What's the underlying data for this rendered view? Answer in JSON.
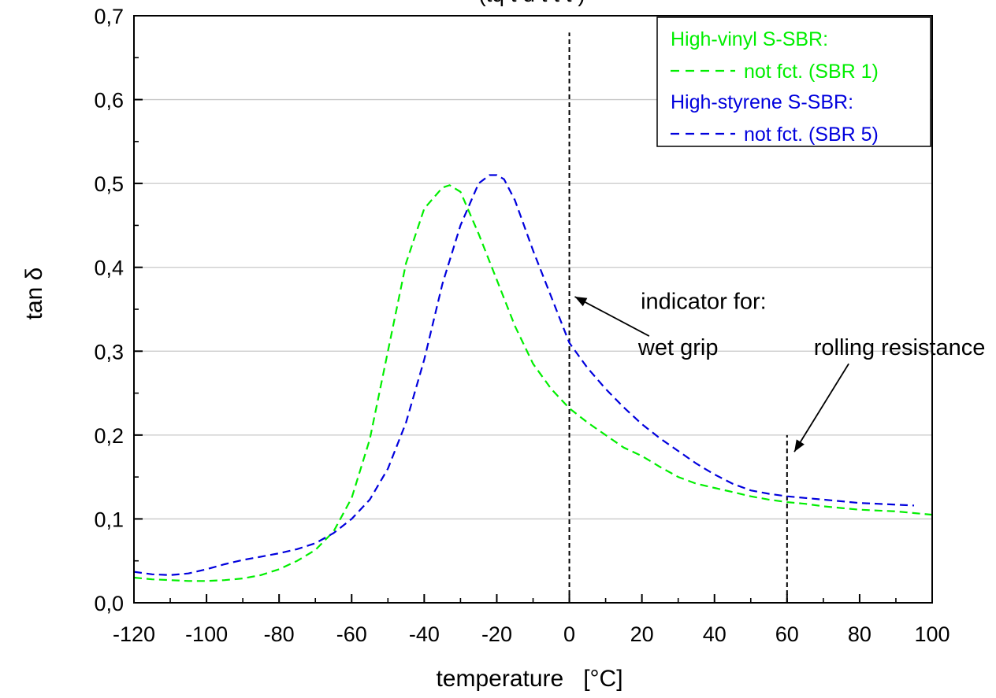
{
  "chart_data": {
    "type": "line",
    "title_fragment": "(tq     t    d  t        t  t   )",
    "xlabel": "temperature   [°C]",
    "ylabel": "tan δ",
    "xlim": [
      -120,
      100
    ],
    "ylim": [
      0,
      0.7
    ],
    "x_ticks": [
      -120,
      -100,
      -80,
      -60,
      -40,
      -20,
      0,
      20,
      40,
      60,
      80,
      100
    ],
    "x_tick_labels": [
      "-120",
      "-100",
      "-80",
      "-60",
      "-40",
      "-20",
      "0",
      "20",
      "40",
      "60",
      "80",
      "100"
    ],
    "y_ticks": [
      0,
      0.1,
      0.2,
      0.3,
      0.4,
      0.5,
      0.6,
      0.7
    ],
    "y_tick_labels": [
      "0,0",
      "0,1",
      "0,2",
      "0,3",
      "0,4",
      "0,5",
      "0,6",
      "0,7"
    ],
    "grid": "horizontal",
    "legend_placement": "top-right",
    "legend": [
      {
        "group_label": "High-vinyl S-SBR:",
        "entry_label": "not fct. (SBR 1)",
        "color": "#00ee00"
      },
      {
        "group_label": "High-styrene S-SBR:",
        "entry_label": "not fct. (SBR 5)",
        "color": "#0000dd"
      }
    ],
    "series": [
      {
        "name": "not fct. (SBR 1)",
        "color": "#00ee00",
        "x": [
          -120,
          -115,
          -110,
          -105,
          -100,
          -95,
          -90,
          -85,
          -80,
          -75,
          -70,
          -65,
          -60,
          -55,
          -50,
          -45,
          -40,
          -35,
          -33,
          -30,
          -25,
          -20,
          -15,
          -10,
          -5,
          0,
          5,
          10,
          15,
          20,
          25,
          30,
          35,
          40,
          45,
          50,
          55,
          60,
          65,
          70,
          75,
          80,
          85,
          90,
          95,
          100
        ],
        "y": [
          0.03,
          0.028,
          0.027,
          0.026,
          0.026,
          0.027,
          0.029,
          0.033,
          0.04,
          0.05,
          0.063,
          0.085,
          0.125,
          0.195,
          0.3,
          0.405,
          0.47,
          0.495,
          0.498,
          0.49,
          0.44,
          0.385,
          0.33,
          0.285,
          0.255,
          0.232,
          0.215,
          0.2,
          0.185,
          0.175,
          0.162,
          0.15,
          0.142,
          0.137,
          0.132,
          0.127,
          0.123,
          0.12,
          0.118,
          0.115,
          0.113,
          0.111,
          0.11,
          0.109,
          0.107,
          0.105
        ]
      },
      {
        "name": "not fct. (SBR 5)",
        "color": "#0000dd",
        "x": [
          -120,
          -115,
          -110,
          -105,
          -100,
          -95,
          -90,
          -85,
          -80,
          -75,
          -70,
          -65,
          -60,
          -55,
          -50,
          -45,
          -40,
          -35,
          -30,
          -25,
          -22,
          -20,
          -18,
          -15,
          -10,
          -5,
          0,
          5,
          10,
          15,
          20,
          25,
          30,
          35,
          40,
          45,
          50,
          55,
          60,
          65,
          70,
          75,
          80,
          85,
          90,
          95
        ],
        "y": [
          0.037,
          0.034,
          0.033,
          0.035,
          0.04,
          0.046,
          0.051,
          0.055,
          0.059,
          0.064,
          0.071,
          0.083,
          0.1,
          0.123,
          0.16,
          0.215,
          0.29,
          0.38,
          0.45,
          0.5,
          0.51,
          0.51,
          0.505,
          0.48,
          0.42,
          0.365,
          0.31,
          0.28,
          0.255,
          0.233,
          0.213,
          0.196,
          0.181,
          0.166,
          0.153,
          0.142,
          0.134,
          0.13,
          0.127,
          0.125,
          0.123,
          0.121,
          0.119,
          0.118,
          0.117,
          0.116
        ]
      }
    ],
    "markers": [
      {
        "x": 0,
        "y_from": 0,
        "y_to": 0.68
      },
      {
        "x": 60,
        "y_from": 0,
        "y_to": 0.2
      }
    ],
    "annotations": [
      {
        "text": "indicator for:",
        "x": 37,
        "y": 0.36
      },
      {
        "text": "wet grip",
        "x": 30,
        "y": 0.305,
        "arrow_from": [
          22,
          0.318
        ],
        "arrow_to": [
          1.5,
          0.365
        ]
      },
      {
        "text": "rolling resistance",
        "x": 91,
        "y": 0.305,
        "arrow_from": [
          77,
          0.285
        ],
        "arrow_to": [
          62,
          0.18
        ]
      }
    ]
  }
}
